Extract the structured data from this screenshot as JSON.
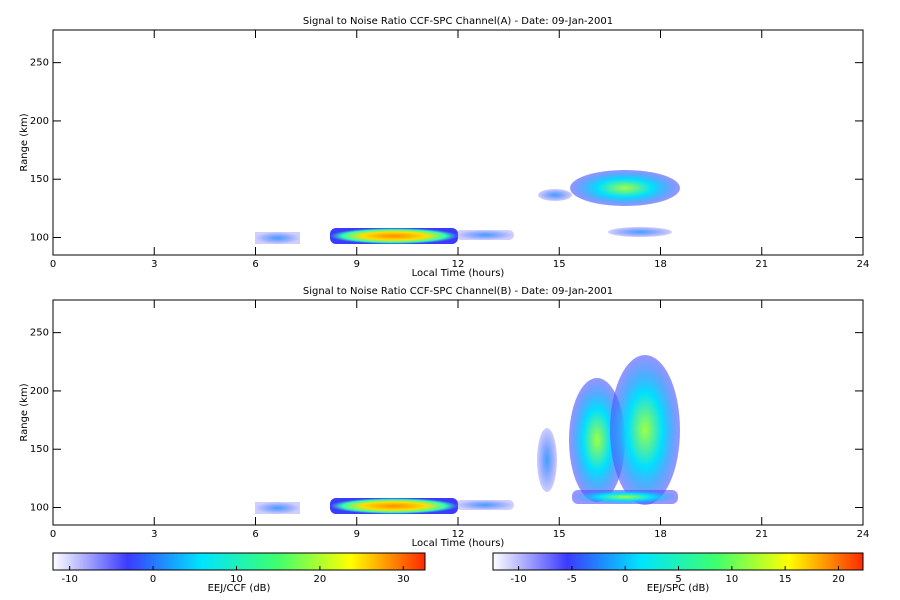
{
  "chart_data": [
    {
      "type": "heatmap",
      "title": "Signal to Noise Ratio CCF-SPC Channel(A) - Date: 09-Jan-2001",
      "xlabel": "Local Time (hours)",
      "ylabel": "Range (km)",
      "xlim": [
        0,
        24
      ],
      "xticks": [
        0,
        3,
        6,
        9,
        12,
        15,
        18,
        21,
        24
      ],
      "ylim": [
        85,
        278
      ],
      "yticks": [
        100,
        150,
        200,
        250
      ]
    },
    {
      "type": "heatmap",
      "title": "Signal to Noise Ratio CCF-SPC Channel(B) - Date: 09-Jan-2001",
      "xlabel": "Local Time (hours)",
      "ylabel": "Range (km)",
      "xlim": [
        0,
        24
      ],
      "xticks": [
        0,
        3,
        6,
        9,
        12,
        15,
        18,
        21,
        24
      ],
      "ylim": [
        85,
        278
      ],
      "yticks": [
        100,
        150,
        200,
        250
      ]
    },
    {
      "type": "colorbar",
      "label": "EEJ/CCF (dB)",
      "xlim": [
        -12,
        32.6
      ],
      "xticks": [
        -10,
        0,
        10,
        20,
        30
      ],
      "colors": [
        "#ffffff",
        "#3b3bff",
        "#00e5ff",
        "#3cff70",
        "#ffff00",
        "#ff2a00"
      ]
    },
    {
      "type": "colorbar",
      "label": "EEJ/SPC (dB)",
      "xlim": [
        -12.4,
        22.3
      ],
      "xticks": [
        -10,
        -5,
        0,
        5,
        10,
        15,
        20
      ],
      "colors": [
        "#ffffff",
        "#3b3bff",
        "#00e5ff",
        "#3cff70",
        "#ffff00",
        "#ff2a00"
      ]
    }
  ]
}
